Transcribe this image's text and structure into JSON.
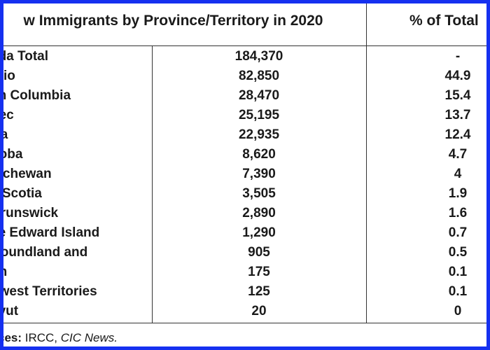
{
  "table": {
    "header_left": "w Immigrants by Province/Territory in 2020",
    "header_right": "% of Total",
    "rows": [
      {
        "province": "ada Total",
        "immigrants": "184,370",
        "percent": "-"
      },
      {
        "province": "ario",
        "immigrants": "82,850",
        "percent": "44.9"
      },
      {
        "province": "sh Columbia",
        "immigrants": "28,470",
        "percent": "15.4"
      },
      {
        "province": "bec",
        "immigrants": "25,195",
        "percent": "13.7"
      },
      {
        "province": "rta",
        "immigrants": "22,935",
        "percent": "12.4"
      },
      {
        "province": "itoba",
        "immigrants": "8,620",
        "percent": "4.7"
      },
      {
        "province": "atchewan",
        "immigrants": "7,390",
        "percent": "4"
      },
      {
        "province": "a Scotia",
        "immigrants": "3,505",
        "percent": "1.9"
      },
      {
        "province": "Brunswick",
        "immigrants": "2,890",
        "percent": "1.6"
      },
      {
        "province": "ce Edward Island",
        "immigrants": "1,290",
        "percent": "0.7"
      },
      {
        "province": "rfoundland and",
        "immigrants": "905",
        "percent": "0.5"
      },
      {
        "province": "on",
        "immigrants": "175",
        "percent": "0.1"
      },
      {
        "province": "hwest Territories",
        "immigrants": "125",
        "percent": "0.1"
      },
      {
        "province": "avut",
        "immigrants": "20",
        "percent": "0"
      }
    ]
  },
  "source": {
    "label": "ces:",
    "text": " IRCC, ",
    "italic": "CIC News."
  },
  "colors": {
    "border": "#1530f0",
    "grid": "#333333",
    "text": "#1a1a1a"
  }
}
